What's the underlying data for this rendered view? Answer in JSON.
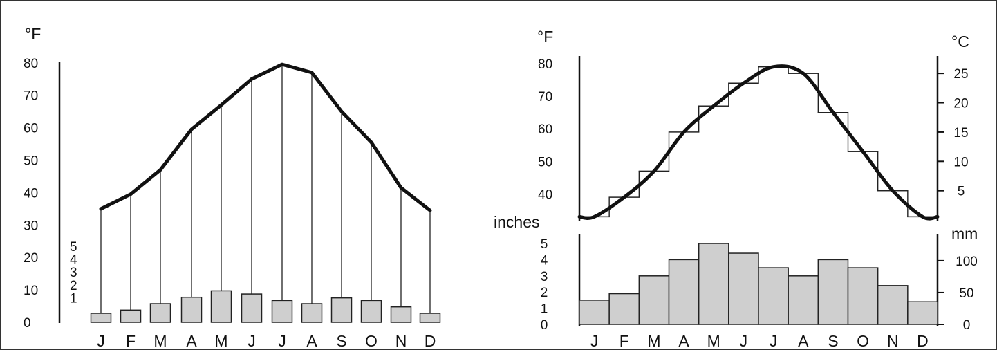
{
  "chart_data": [
    {
      "type": "bar",
      "combo": "bar+line",
      "categories": [
        "J",
        "F",
        "M",
        "A",
        "M",
        "J",
        "J",
        "A",
        "S",
        "O",
        "N",
        "D"
      ],
      "temperature_unit": "°F",
      "temperature_ticks": [
        0,
        10,
        20,
        30,
        40,
        50,
        60,
        70,
        80
      ],
      "temperature_ylim": [
        0,
        80
      ],
      "temperature_values": [
        35,
        39.5,
        47,
        59.5,
        67,
        75,
        79.5,
        77,
        65,
        55.5,
        41.5,
        34.5
      ],
      "precip_ticks": [
        1,
        2,
        3,
        4,
        5
      ],
      "precip_values": [
        0.7,
        0.95,
        1.45,
        1.95,
        2.45,
        2.2,
        1.7,
        1.45,
        1.9,
        1.7,
        1.2,
        0.7
      ],
      "series": [
        {
          "name": "",
          "kind": "line",
          "values": [
            35,
            39.5,
            47,
            59.5,
            67,
            75,
            79.5,
            77,
            65,
            55.5,
            41.5,
            34.5
          ]
        },
        {
          "name": "",
          "kind": "bar",
          "values": [
            0.7,
            0.95,
            1.45,
            1.95,
            2.45,
            2.2,
            1.7,
            1.45,
            1.9,
            1.7,
            1.2,
            0.7
          ]
        }
      ],
      "grid": false
    },
    {
      "type": "bar",
      "combo": "bar+line",
      "categories": [
        "J",
        "F",
        "M",
        "A",
        "M",
        "J",
        "J",
        "A",
        "S",
        "O",
        "N",
        "D"
      ],
      "temp_left_unit": "°F",
      "temp_right_unit": "°C",
      "temp_left_ticks": [
        40,
        50,
        60,
        70,
        80
      ],
      "temp_right_ticks": [
        5,
        10,
        15,
        20,
        25
      ],
      "temp_f_ylim": [
        33,
        82
      ],
      "temperature_values": [
        33,
        39,
        47,
        59,
        67,
        74,
        79,
        77,
        65,
        53,
        41,
        33
      ],
      "precip_left_unit": "inches",
      "precip_right_unit": "mm",
      "precip_left_ticks": [
        0,
        1,
        2,
        3,
        4,
        5
      ],
      "precip_right_ticks": [
        0,
        50,
        100
      ],
      "precip_ylim": [
        0,
        5.3
      ],
      "precip_values": [
        1.5,
        1.9,
        3.0,
        4.0,
        5.0,
        4.4,
        3.5,
        3.0,
        4.0,
        3.5,
        2.4,
        1.4
      ],
      "grid": false
    }
  ]
}
